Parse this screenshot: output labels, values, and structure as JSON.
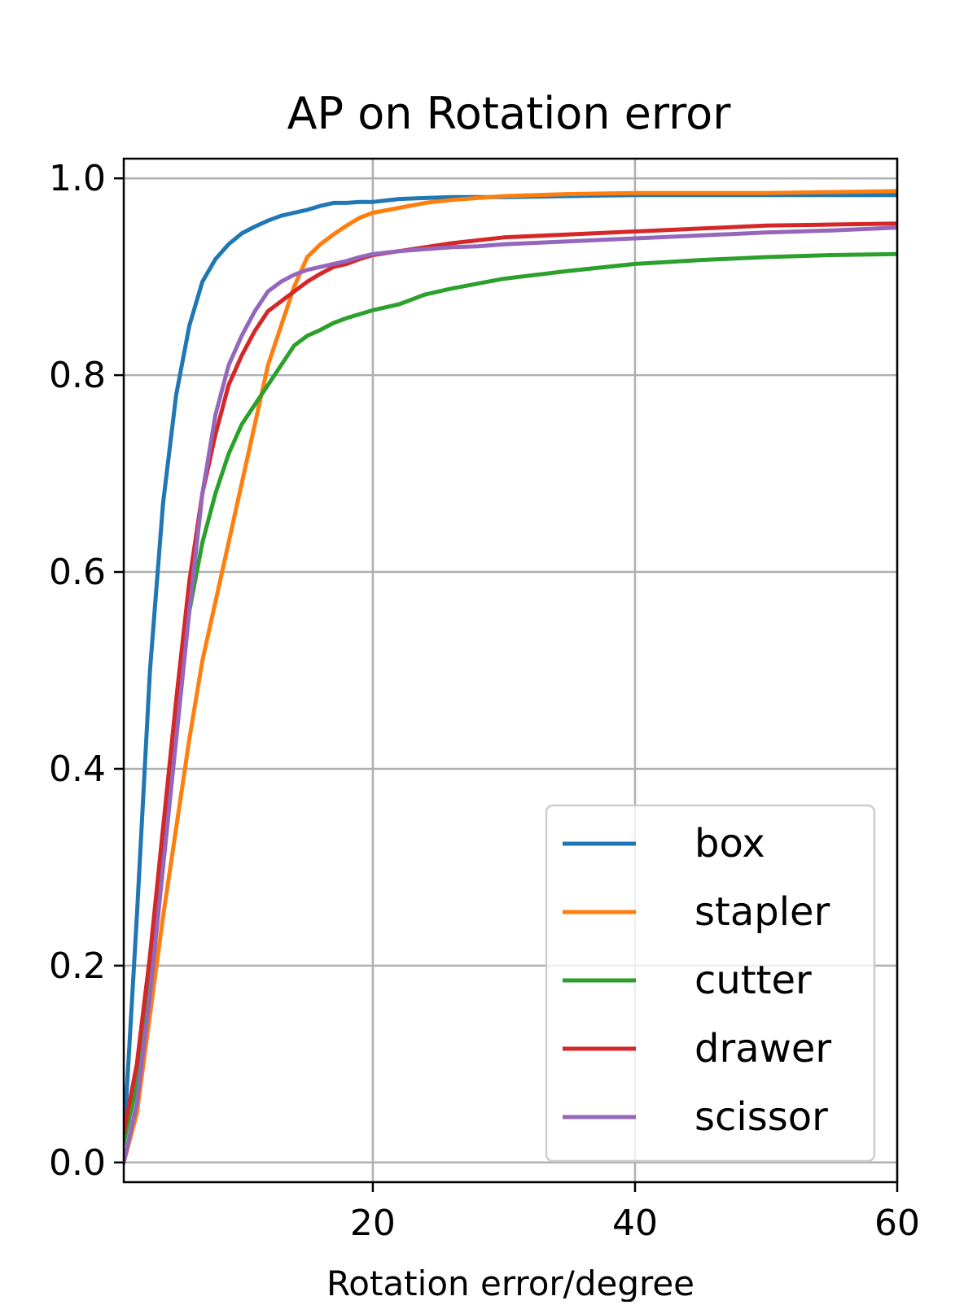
{
  "chart_data": {
    "type": "line",
    "title": "AP on Rotation error",
    "xlabel": "Rotation error/degree",
    "ylabel": "",
    "xlim": [
      1,
      60
    ],
    "ylim": [
      -0.02,
      1.02
    ],
    "xticks": [
      20,
      40,
      60
    ],
    "yticks": [
      0.0,
      0.2,
      0.4,
      0.6,
      0.8,
      1.0
    ],
    "xtick_labels": [
      "20",
      "40",
      "60"
    ],
    "ytick_labels": [
      "0.0",
      "0.2",
      "0.4",
      "0.6",
      "0.8",
      "1.0"
    ],
    "grid": true,
    "legend_position": "lower-right",
    "x": [
      1,
      2,
      3,
      4,
      5,
      6,
      7,
      8,
      9,
      10,
      11,
      12,
      13,
      14,
      15,
      16,
      17,
      18,
      19,
      20,
      22,
      24,
      26,
      28,
      30,
      35,
      40,
      45,
      50,
      55,
      60
    ],
    "series": [
      {
        "name": "box",
        "color": "#1f77b4",
        "values": [
          0.02,
          0.25,
          0.5,
          0.67,
          0.78,
          0.85,
          0.895,
          0.918,
          0.933,
          0.944,
          0.951,
          0.957,
          0.962,
          0.965,
          0.968,
          0.972,
          0.975,
          0.975,
          0.976,
          0.976,
          0.979,
          0.98,
          0.981,
          0.981,
          0.981,
          0.982,
          0.983,
          0.983,
          0.983,
          0.983,
          0.983
        ]
      },
      {
        "name": "stapler",
        "color": "#ff7f0e",
        "values": [
          0.0,
          0.05,
          0.15,
          0.25,
          0.34,
          0.43,
          0.51,
          0.57,
          0.63,
          0.69,
          0.75,
          0.81,
          0.85,
          0.89,
          0.92,
          0.933,
          0.943,
          0.952,
          0.96,
          0.965,
          0.97,
          0.975,
          0.978,
          0.98,
          0.982,
          0.984,
          0.985,
          0.985,
          0.985,
          0.986,
          0.987
        ]
      },
      {
        "name": "cutter",
        "color": "#2ca02c",
        "values": [
          0.02,
          0.08,
          0.2,
          0.33,
          0.46,
          0.56,
          0.63,
          0.68,
          0.72,
          0.75,
          0.77,
          0.79,
          0.81,
          0.83,
          0.84,
          0.846,
          0.853,
          0.858,
          0.862,
          0.866,
          0.872,
          0.882,
          0.888,
          0.893,
          0.898,
          0.906,
          0.913,
          0.917,
          0.92,
          0.922,
          0.923
        ]
      },
      {
        "name": "drawer",
        "color": "#d62728",
        "values": [
          0.03,
          0.1,
          0.21,
          0.34,
          0.47,
          0.59,
          0.68,
          0.74,
          0.79,
          0.82,
          0.845,
          0.865,
          0.875,
          0.885,
          0.895,
          0.903,
          0.91,
          0.913,
          0.918,
          0.922,
          0.926,
          0.93,
          0.934,
          0.937,
          0.94,
          0.943,
          0.946,
          0.949,
          0.952,
          0.953,
          0.954
        ]
      },
      {
        "name": "scissor",
        "color": "#9467bd",
        "values": [
          0.0,
          0.06,
          0.17,
          0.3,
          0.43,
          0.56,
          0.68,
          0.76,
          0.81,
          0.84,
          0.865,
          0.885,
          0.895,
          0.902,
          0.907,
          0.91,
          0.913,
          0.916,
          0.92,
          0.923,
          0.926,
          0.928,
          0.93,
          0.931,
          0.933,
          0.936,
          0.939,
          0.942,
          0.945,
          0.947,
          0.95
        ]
      }
    ]
  }
}
